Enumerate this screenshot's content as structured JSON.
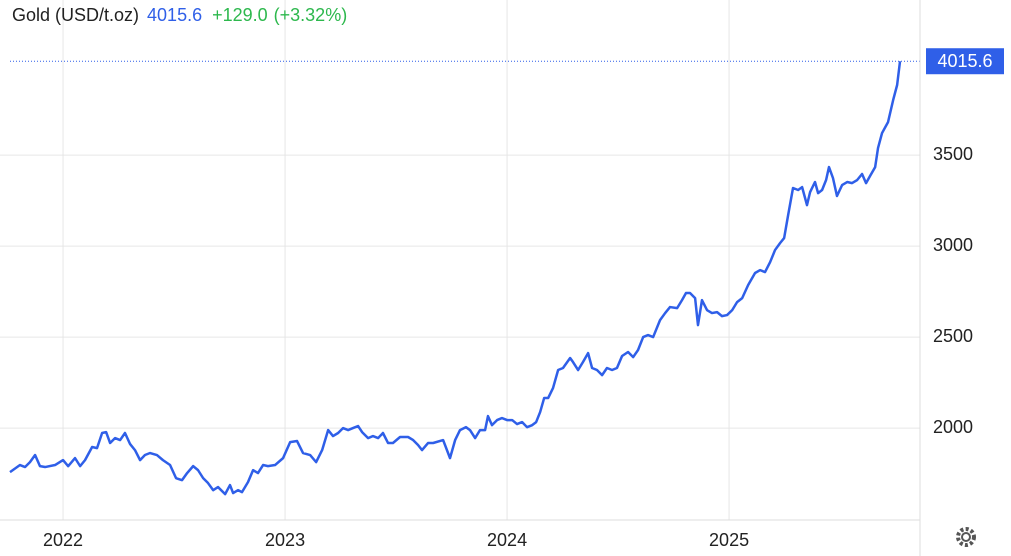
{
  "chart_data": {
    "type": "line",
    "title": "Gold (USD/t.oz)",
    "change": "+129.0",
    "change_pct": "(+3.32%)",
    "x": [
      2021.761,
      2021.806,
      2021.829,
      2021.851,
      2021.874,
      2021.896,
      2021.919,
      2021.964,
      2022.0,
      2022.023,
      2022.054,
      2022.077,
      2022.099,
      2022.131,
      2022.153,
      2022.176,
      2022.194,
      2022.212,
      2022.234,
      2022.257,
      2022.279,
      2022.302,
      2022.324,
      2022.347,
      2022.369,
      2022.392,
      2022.423,
      2022.45,
      2022.482,
      2022.509,
      2022.536,
      2022.559,
      2022.586,
      2022.608,
      2022.631,
      2022.653,
      2022.676,
      2022.698,
      2022.73,
      2022.752,
      2022.766,
      2022.788,
      2022.806,
      2022.833,
      2022.856,
      2022.878,
      2022.901,
      2022.923,
      2022.955,
      2022.991,
      2023.023,
      2023.054,
      2023.081,
      2023.113,
      2023.14,
      2023.167,
      2023.194,
      2023.216,
      2023.239,
      2023.261,
      2023.284,
      2023.306,
      2023.329,
      2023.347,
      2023.374,
      2023.396,
      2023.419,
      2023.441,
      2023.464,
      2023.486,
      2023.518,
      2023.554,
      2023.577,
      2023.599,
      2023.617,
      2023.644,
      2023.667,
      2023.712,
      2023.743,
      2023.766,
      2023.788,
      2023.815,
      2023.833,
      2023.856,
      2023.878,
      2023.901,
      2023.914,
      2023.932,
      2023.955,
      2023.977,
      2024.0,
      2024.023,
      2024.045,
      2024.068,
      2024.09,
      2024.113,
      2024.131,
      2024.149,
      2024.167,
      2024.185,
      2024.207,
      2024.23,
      2024.252,
      2024.284,
      2024.297,
      2024.32,
      2024.342,
      2024.365,
      2024.383,
      2024.405,
      2024.428,
      2024.45,
      2024.473,
      2024.495,
      2024.518,
      2024.545,
      2024.568,
      2024.59,
      2024.613,
      2024.635,
      2024.658,
      2024.689,
      2024.712,
      2024.734,
      2024.766,
      2024.788,
      2024.806,
      2024.824,
      2024.847,
      2024.86,
      2024.878,
      2024.901,
      2024.923,
      2024.946,
      2024.968,
      2024.991,
      2025.014,
      2025.036,
      2025.059,
      2025.086,
      2025.117,
      2025.14,
      2025.162,
      2025.185,
      2025.207,
      2025.23,
      2025.248,
      2025.266,
      2025.288,
      2025.311,
      2025.329,
      2025.351,
      2025.365,
      2025.387,
      2025.401,
      2025.419,
      2025.437,
      2025.45,
      2025.468,
      2025.486,
      2025.509,
      2025.532,
      2025.554,
      2025.577,
      2025.599,
      2025.617,
      2025.635,
      2025.658,
      2025.671,
      2025.689,
      2025.716,
      2025.739,
      2025.757,
      2025.77
    ],
    "series": [
      {
        "name": "Gold",
        "color": "#2f5fe8",
        "values": [
          1758,
          1797,
          1786,
          1813,
          1852,
          1791,
          1786,
          1797,
          1824,
          1791,
          1835,
          1791,
          1824,
          1896,
          1890,
          1973,
          1978,
          1918,
          1945,
          1934,
          1973,
          1912,
          1879,
          1824,
          1852,
          1863,
          1852,
          1824,
          1797,
          1725,
          1714,
          1753,
          1791,
          1769,
          1725,
          1698,
          1659,
          1676,
          1637,
          1687,
          1643,
          1659,
          1648,
          1703,
          1769,
          1753,
          1797,
          1791,
          1797,
          1835,
          1923,
          1929,
          1863,
          1852,
          1813,
          1879,
          1989,
          1956,
          1973,
          2000,
          1989,
          2000,
          2011,
          1978,
          1945,
          1956,
          1945,
          1973,
          1918,
          1918,
          1951,
          1951,
          1934,
          1907,
          1879,
          1918,
          1918,
          1934,
          1835,
          1934,
          1989,
          2005,
          1989,
          1945,
          1989,
          1989,
          2066,
          2016,
          2044,
          2055,
          2044,
          2044,
          2022,
          2033,
          2005,
          2016,
          2033,
          2088,
          2165,
          2165,
          2220,
          2319,
          2330,
          2385,
          2363,
          2319,
          2363,
          2412,
          2330,
          2319,
          2291,
          2330,
          2319,
          2330,
          2396,
          2418,
          2390,
          2429,
          2500,
          2511,
          2500,
          2593,
          2632,
          2665,
          2659,
          2703,
          2742,
          2742,
          2714,
          2566,
          2703,
          2648,
          2632,
          2637,
          2615,
          2621,
          2648,
          2692,
          2714,
          2786,
          2852,
          2868,
          2857,
          2912,
          2978,
          3017,
          3044,
          3170,
          3319,
          3308,
          3324,
          3225,
          3297,
          3352,
          3291,
          3308,
          3363,
          3434,
          3374,
          3275,
          3335,
          3352,
          3346,
          3363,
          3396,
          3346,
          3385,
          3434,
          3539,
          3621,
          3681,
          3802,
          3885,
          4015.6
        ]
      }
    ],
    "change_color": "#2db84d",
    "xlim": [
      2021.716,
      2025.86
    ],
    "xticks": [
      2022,
      2023,
      2024,
      2025
    ],
    "ylim": [
      1495,
      4352
    ],
    "yticks": [
      2000,
      2500,
      3000,
      3500
    ],
    "grid": true
  }
}
